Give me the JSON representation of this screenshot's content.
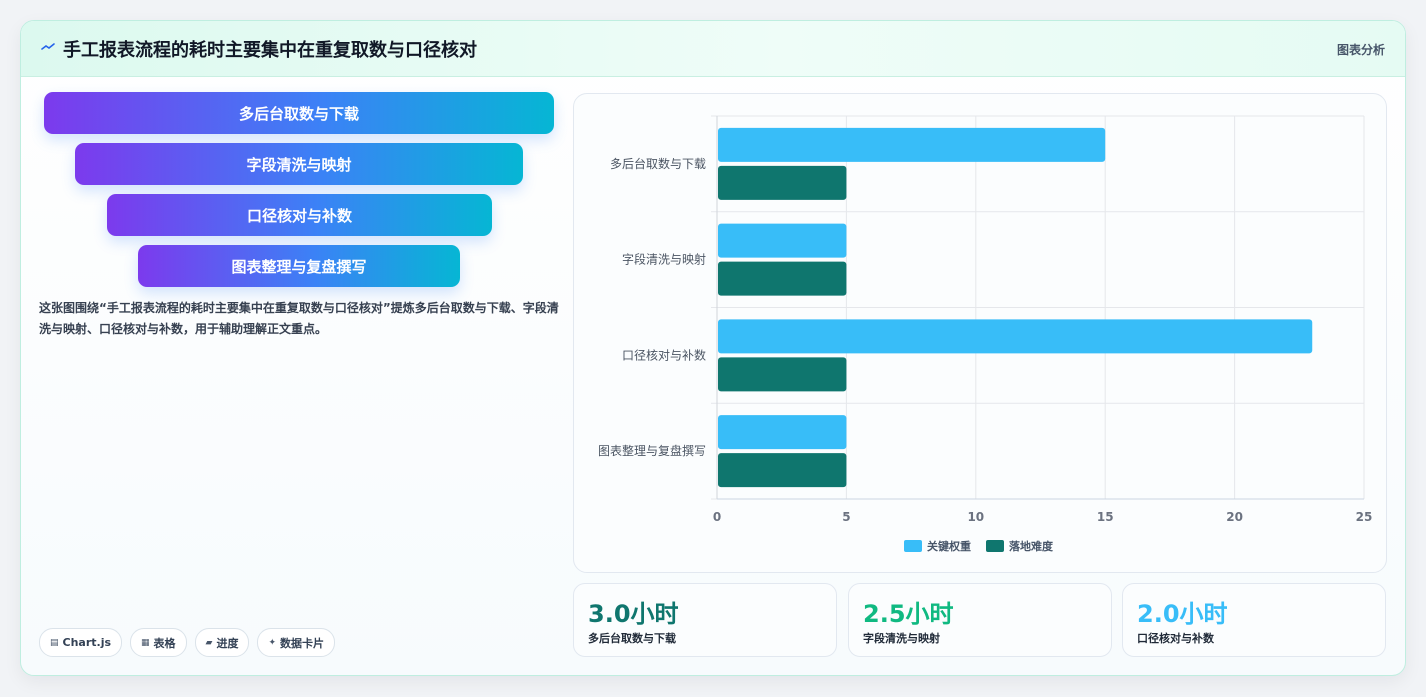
{
  "header": {
    "title": "手工报表流程的耗时主要集中在重复取数与口径核对",
    "tag": "图表分析",
    "icon": "wave-icon"
  },
  "funnel": {
    "steps": [
      "多后台取数与下载",
      "字段清洗与映射",
      "口径核对与补数",
      "图表整理与复盘撰写"
    ]
  },
  "description": "这张图围绕“手工报表流程的耗时主要集中在重复取数与口径核对”提炼多后台取数与下载、字段清洗与映射、口径核对与补数，用于辅助理解正文重点。",
  "chips": [
    {
      "icon": "chart-icon",
      "glyph": "▤",
      "label": "Chart.js"
    },
    {
      "icon": "table-icon",
      "glyph": "▦",
      "label": "表格"
    },
    {
      "icon": "progress-icon",
      "glyph": "▰",
      "label": "进度"
    },
    {
      "icon": "sparkle-icon",
      "glyph": "✦",
      "label": "数据卡片"
    }
  ],
  "stats": [
    {
      "value": "3.0小时",
      "label": "多后台取数与下载",
      "color": "#0f766e"
    },
    {
      "value": "2.5小时",
      "label": "字段清洗与映射",
      "color": "#10b981"
    },
    {
      "value": "2.0小时",
      "label": "口径核对与补数",
      "color": "#38bdf8"
    }
  ],
  "chart_data": {
    "type": "bar",
    "orientation": "horizontal",
    "categories": [
      "多后台取数与下载",
      "字段清洗与映射",
      "口径核对与补数",
      "图表整理与复盘撰写"
    ],
    "series": [
      {
        "name": "关键权重",
        "values": [
          15,
          5,
          23,
          5
        ],
        "color": "#38bdf8"
      },
      {
        "name": "落地难度",
        "values": [
          5,
          5,
          5,
          5
        ],
        "color": "#0f766e"
      }
    ],
    "xlim": [
      0,
      25
    ],
    "xticks": [
      0,
      5,
      10,
      15,
      20,
      25
    ],
    "grid": true,
    "legend": "bottom"
  }
}
